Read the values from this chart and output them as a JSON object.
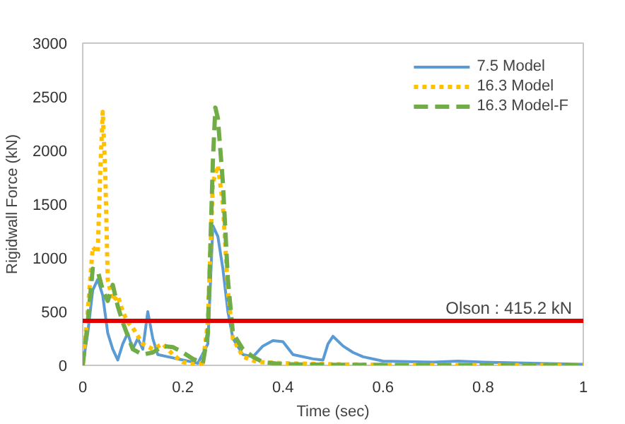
{
  "chart_data": {
    "type": "line",
    "xlabel": "Time (sec)",
    "ylabel": "Rigidwall Force (kN)",
    "xlim": [
      0,
      1
    ],
    "xticks": [
      0,
      0.2,
      0.4,
      0.6,
      0.8,
      1
    ],
    "ylim": [
      0,
      3000
    ],
    "yticks": [
      0,
      500,
      1000,
      1500,
      2000,
      2500,
      3000
    ],
    "grid": false,
    "legend": "top right",
    "marker": "none",
    "series": [
      {
        "name": "7.5 Model",
        "color": "#5b9bd5",
        "line_style": "solid",
        "x": [
          0,
          0.01,
          0.02,
          0.03,
          0.04,
          0.05,
          0.06,
          0.07,
          0.08,
          0.09,
          0.1,
          0.11,
          0.12,
          0.13,
          0.14,
          0.15,
          0.17,
          0.2,
          0.23,
          0.25,
          0.26,
          0.27,
          0.28,
          0.29,
          0.3,
          0.32,
          0.34,
          0.36,
          0.38,
          0.4,
          0.42,
          0.46,
          0.48,
          0.49,
          0.5,
          0.52,
          0.54,
          0.56,
          0.6,
          0.7,
          0.75,
          0.8,
          0.9,
          1.0
        ],
        "values": [
          0,
          300,
          700,
          800,
          650,
          300,
          150,
          50,
          200,
          300,
          150,
          250,
          150,
          500,
          250,
          100,
          80,
          50,
          20,
          200,
          1300,
          1200,
          900,
          500,
          250,
          100,
          80,
          180,
          230,
          220,
          100,
          60,
          50,
          200,
          270,
          180,
          120,
          80,
          40,
          30,
          40,
          30,
          20,
          10
        ]
      },
      {
        "name": "16.3 Model",
        "color": "#ffc000",
        "line_style": "dotted",
        "x": [
          0,
          0.01,
          0.02,
          0.03,
          0.035,
          0.04,
          0.045,
          0.05,
          0.06,
          0.07,
          0.08,
          0.09,
          0.1,
          0.12,
          0.14,
          0.16,
          0.18,
          0.2,
          0.22,
          0.24,
          0.25,
          0.26,
          0.27,
          0.28,
          0.29,
          0.3,
          0.32,
          0.35,
          0.4,
          0.5,
          0.6,
          1.0
        ],
        "values": [
          0,
          500,
          1100,
          1050,
          1800,
          2360,
          1800,
          800,
          600,
          650,
          500,
          400,
          350,
          200,
          150,
          200,
          100,
          30,
          10,
          20,
          400,
          1700,
          1860,
          1500,
          700,
          250,
          80,
          30,
          20,
          10,
          5,
          0
        ]
      },
      {
        "name": "16.3 Model-F",
        "color": "#70ad47",
        "line_style": "dashed",
        "x": [
          0,
          0.01,
          0.02,
          0.03,
          0.04,
          0.05,
          0.06,
          0.07,
          0.08,
          0.1,
          0.12,
          0.14,
          0.16,
          0.18,
          0.2,
          0.22,
          0.24,
          0.25,
          0.26,
          0.265,
          0.27,
          0.28,
          0.29,
          0.3,
          0.32,
          0.34,
          0.36,
          0.4,
          0.5,
          1.0
        ],
        "values": [
          0,
          400,
          900,
          880,
          700,
          600,
          750,
          550,
          400,
          150,
          100,
          120,
          180,
          170,
          120,
          60,
          20,
          300,
          1900,
          2400,
          2300,
          1700,
          800,
          300,
          150,
          80,
          30,
          10,
          5,
          0
        ]
      }
    ],
    "ref_lines": [
      {
        "axis": "y",
        "value": 415.2,
        "label": "Olson : 415.2 kN",
        "color": "#e00000",
        "line_style": "solid"
      }
    ]
  }
}
